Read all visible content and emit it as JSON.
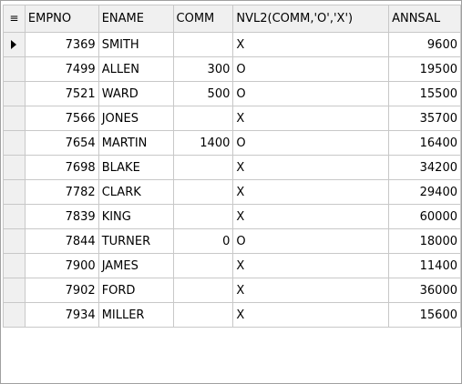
{
  "grid": {
    "menu_icon": "≡",
    "current_row": 0,
    "columns": [
      {
        "key": "empno",
        "label": "EMPNO",
        "align": "right"
      },
      {
        "key": "ename",
        "label": "ENAME",
        "align": "left"
      },
      {
        "key": "comm",
        "label": "COMM",
        "align": "right"
      },
      {
        "key": "nvl2",
        "label": "NVL2(COMM,'O','X')",
        "align": "left"
      },
      {
        "key": "annsal",
        "label": "ANNSAL",
        "align": "right"
      }
    ],
    "rows": [
      {
        "empno": "7369",
        "ename": "SMITH",
        "comm": "",
        "nvl2": "X",
        "annsal": "9600"
      },
      {
        "empno": "7499",
        "ename": "ALLEN",
        "comm": "300",
        "nvl2": "O",
        "annsal": "19500"
      },
      {
        "empno": "7521",
        "ename": "WARD",
        "comm": "500",
        "nvl2": "O",
        "annsal": "15500"
      },
      {
        "empno": "7566",
        "ename": "JONES",
        "comm": "",
        "nvl2": "X",
        "annsal": "35700"
      },
      {
        "empno": "7654",
        "ename": "MARTIN",
        "comm": "1400",
        "nvl2": "O",
        "annsal": "16400"
      },
      {
        "empno": "7698",
        "ename": "BLAKE",
        "comm": "",
        "nvl2": "X",
        "annsal": "34200"
      },
      {
        "empno": "7782",
        "ename": "CLARK",
        "comm": "",
        "nvl2": "X",
        "annsal": "29400"
      },
      {
        "empno": "7839",
        "ename": "KING",
        "comm": "",
        "nvl2": "X",
        "annsal": "60000"
      },
      {
        "empno": "7844",
        "ename": "TURNER",
        "comm": "0",
        "nvl2": "O",
        "annsal": "18000"
      },
      {
        "empno": "7900",
        "ename": "JAMES",
        "comm": "",
        "nvl2": "X",
        "annsal": "11400"
      },
      {
        "empno": "7902",
        "ename": "FORD",
        "comm": "",
        "nvl2": "X",
        "annsal": "36000"
      },
      {
        "empno": "7934",
        "ename": "MILLER",
        "comm": "",
        "nvl2": "X",
        "annsal": "15600"
      }
    ]
  }
}
